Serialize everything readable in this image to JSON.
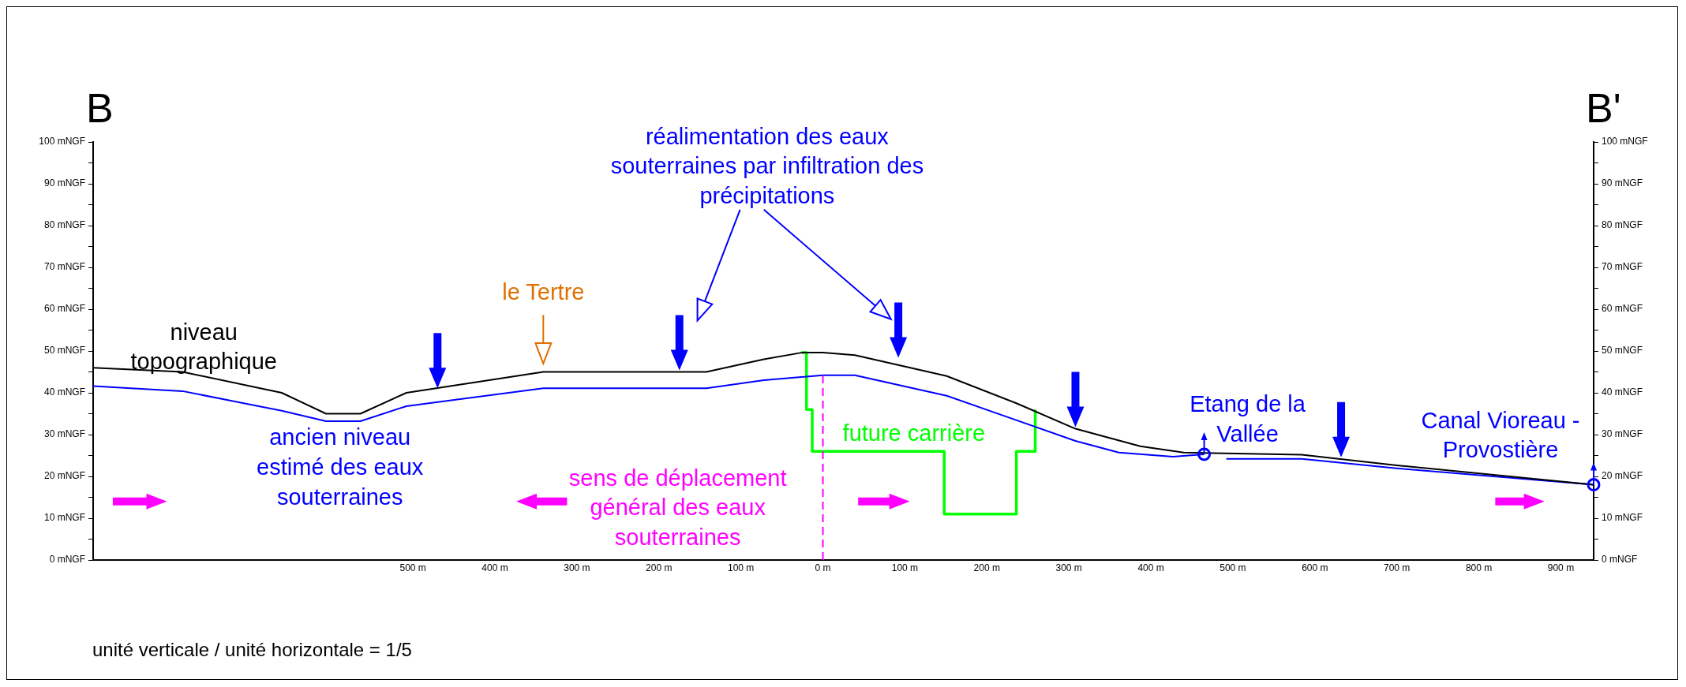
{
  "chart_data": {
    "type": "line",
    "xlim": [
      -890,
      940
    ],
    "xticks": [
      {
        "value": -500,
        "label": "500 m"
      },
      {
        "value": -400,
        "label": "400 m"
      },
      {
        "value": -300,
        "label": "300 m"
      },
      {
        "value": -200,
        "label": "200 m"
      },
      {
        "value": -100,
        "label": "100 m"
      },
      {
        "value": 0,
        "label": "0 m"
      },
      {
        "value": 100,
        "label": "100 m"
      },
      {
        "value": 200,
        "label": "200 m"
      },
      {
        "value": 300,
        "label": "300 m"
      },
      {
        "value": 400,
        "label": "400 m"
      },
      {
        "value": 500,
        "label": "500 m"
      },
      {
        "value": 600,
        "label": "600 m"
      },
      {
        "value": 700,
        "label": "700 m"
      },
      {
        "value": 800,
        "label": "800 m"
      },
      {
        "value": 900,
        "label": "900 m"
      }
    ],
    "ylim": [
      0,
      100
    ],
    "yticks": [
      {
        "value": 0,
        "label": "0 mNGF"
      },
      {
        "value": 5,
        "label": null
      },
      {
        "value": 10,
        "label": "10 mNGF"
      },
      {
        "value": 15,
        "label": null
      },
      {
        "value": 20,
        "label": "20 mNGF"
      },
      {
        "value": 25,
        "label": null
      },
      {
        "value": 30,
        "label": "30 mNGF"
      },
      {
        "value": 35,
        "label": null
      },
      {
        "value": 40,
        "label": "40 mNGF"
      },
      {
        "value": 45,
        "label": null
      },
      {
        "value": 50,
        "label": "50 mNGF"
      },
      {
        "value": 55,
        "label": null
      },
      {
        "value": 60,
        "label": "60 mNGF"
      },
      {
        "value": 65,
        "label": null
      },
      {
        "value": 70,
        "label": "70 mNGF"
      },
      {
        "value": 75,
        "label": null
      },
      {
        "value": 80,
        "label": "80 mNGF"
      },
      {
        "value": 85,
        "label": null
      },
      {
        "value": 90,
        "label": "90 mNGF"
      },
      {
        "value": 95,
        "label": null
      },
      {
        "value": 100,
        "label": "100 mNGF"
      }
    ],
    "y2lim": [
      0,
      100
    ],
    "y2ticks": [
      {
        "value": 0,
        "label": "0 mNGF"
      },
      {
        "value": 5,
        "label": null
      },
      {
        "value": 10,
        "label": "10 mNGF"
      },
      {
        "value": 15,
        "label": null
      },
      {
        "value": 20,
        "label": "20 mNGF"
      },
      {
        "value": 25,
        "label": null
      },
      {
        "value": 30,
        "label": "30 mNGF"
      },
      {
        "value": 35,
        "label": null
      },
      {
        "value": 40,
        "label": "40 mNGF"
      },
      {
        "value": 45,
        "label": null
      },
      {
        "value": 50,
        "label": "50 mNGF"
      },
      {
        "value": 55,
        "label": null
      },
      {
        "value": 60,
        "label": "60 mNGF"
      },
      {
        "value": 65,
        "label": null
      },
      {
        "value": 70,
        "label": "70 mNGF"
      },
      {
        "value": 75,
        "label": null
      },
      {
        "value": 80,
        "label": "80 mNGF"
      },
      {
        "value": 85,
        "label": null
      },
      {
        "value": 90,
        "label": "90 mNGF"
      },
      {
        "value": 95,
        "label": null
      },
      {
        "value": 100,
        "label": "100 mNGF"
      }
    ],
    "grid": false,
    "legend": false,
    "series": [
      {
        "name": "niveau topographique",
        "color": "#000000",
        "x": [
          -890,
          -781,
          -660,
          -606,
          -564,
          -508,
          -341,
          -142,
          -72,
          -26,
          0,
          39,
          151,
          236,
          308,
          387,
          440,
          584,
          702,
          940
        ],
        "values": [
          46,
          45,
          40,
          35,
          35,
          40,
          45,
          45,
          48,
          49.6,
          49.6,
          49,
          44,
          37.5,
          31.4,
          27.2,
          25.7,
          25.2,
          22.6,
          18
        ]
      },
      {
        "name": "ancien niveau estimé des eaux souterraines",
        "color": "#0000ff",
        "x": [
          -890,
          -781,
          -660,
          -606,
          -564,
          -508,
          -341,
          -142,
          -72,
          0,
          39,
          151,
          308,
          361,
          427,
          465,
          480,
          492,
          584,
          702,
          940
        ],
        "values": [
          41.6,
          40.4,
          35.7,
          33.2,
          33.2,
          36.8,
          41.1,
          41.1,
          43,
          44.2,
          44.2,
          39.3,
          28.5,
          25.7,
          24.7,
          25.3,
          null,
          24.2,
          24.2,
          21.9,
          18
        ]
      },
      {
        "name": "future carrière",
        "type": "step",
        "color": "#00ff00",
        "x": [
          -26,
          -20,
          -13,
          148,
          236,
          259
        ],
        "values": [
          49.6,
          36,
          26,
          11,
          26,
          36
        ]
      }
    ],
    "ref_lines": [
      {
        "axis": "x",
        "value": 0,
        "label": "sens de déplacement général des eaux souterraines",
        "color": "#ff00ff",
        "line_style": "dashed"
      }
    ],
    "annotations": [
      "B",
      "B'",
      "réalimentation des eaux souterraines par infiltration des précipitations",
      {
        "text": "le Tertre",
        "x": -341,
        "y": 45
      },
      {
        "text": "Etang de la Vallée",
        "x": 465,
        "y": 25.3
      },
      {
        "text": "Canal Vioreau - Provostière",
        "x": 940,
        "y": 18
      },
      "unité verticale / unité horizontale = 1/5"
    ]
  }
}
